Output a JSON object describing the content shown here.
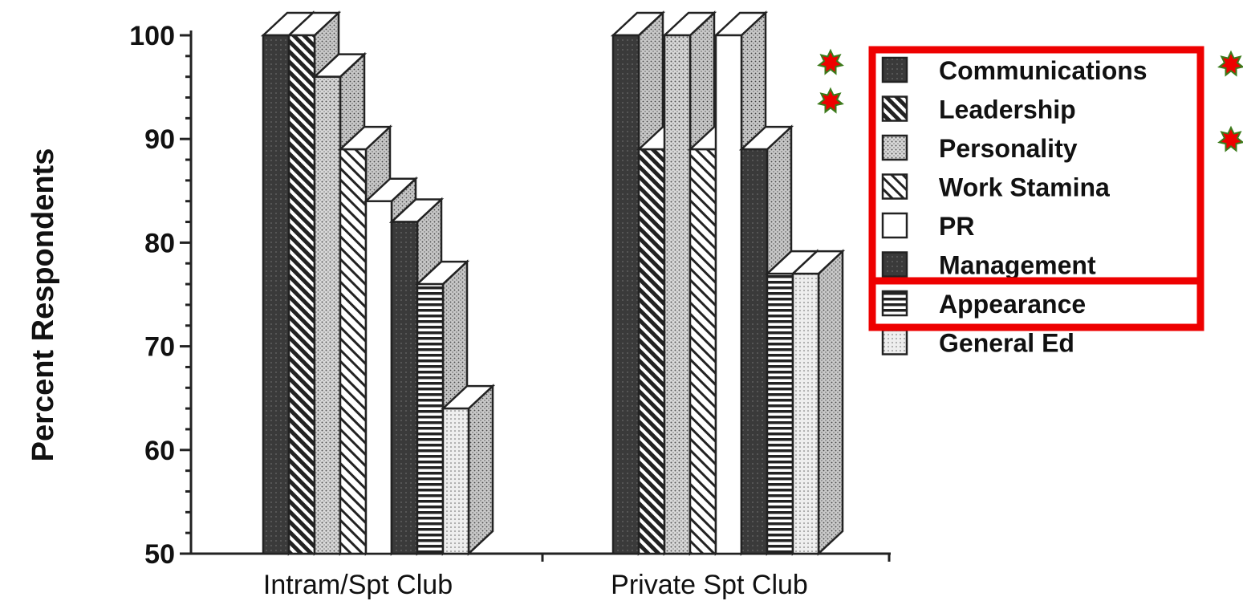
{
  "chart_data": {
    "type": "bar",
    "style": "3d-clustered",
    "ylabel": "Percent Respondents",
    "xlabel": "",
    "ylim": [
      50,
      100
    ],
    "yticks": [
      "50",
      "60",
      "70",
      "80",
      "90",
      "100"
    ],
    "categories": [
      "Intram/Spt Club",
      "Private Spt Club"
    ],
    "series": [
      {
        "name": "Communications",
        "values": [
          100,
          100
        ],
        "pattern": "dark"
      },
      {
        "name": "Leadership",
        "values": [
          100,
          89
        ],
        "pattern": "diag-dense"
      },
      {
        "name": "Personality",
        "values": [
          96,
          100
        ],
        "pattern": "dots"
      },
      {
        "name": "Work Stamina",
        "values": [
          89,
          89
        ],
        "pattern": "diag-light"
      },
      {
        "name": "PR",
        "values": [
          84,
          100
        ],
        "pattern": "white"
      },
      {
        "name": "Management",
        "values": [
          82,
          89
        ],
        "pattern": "dark"
      },
      {
        "name": "Appearance",
        "values": [
          76,
          77
        ],
        "pattern": "horiz"
      },
      {
        "name": "General Ed",
        "values": [
          64,
          77
        ],
        "pattern": "light-dots"
      }
    ],
    "legend_position": "right",
    "highlight_boxes": [
      {
        "target": "legend",
        "color": "#ee0000"
      },
      {
        "target": "legend-appearance",
        "color": "#ee0000"
      }
    ],
    "markers": [
      {
        "shape": "star",
        "color": "#ee0000",
        "outline": "#3a7a1a"
      }
    ]
  }
}
